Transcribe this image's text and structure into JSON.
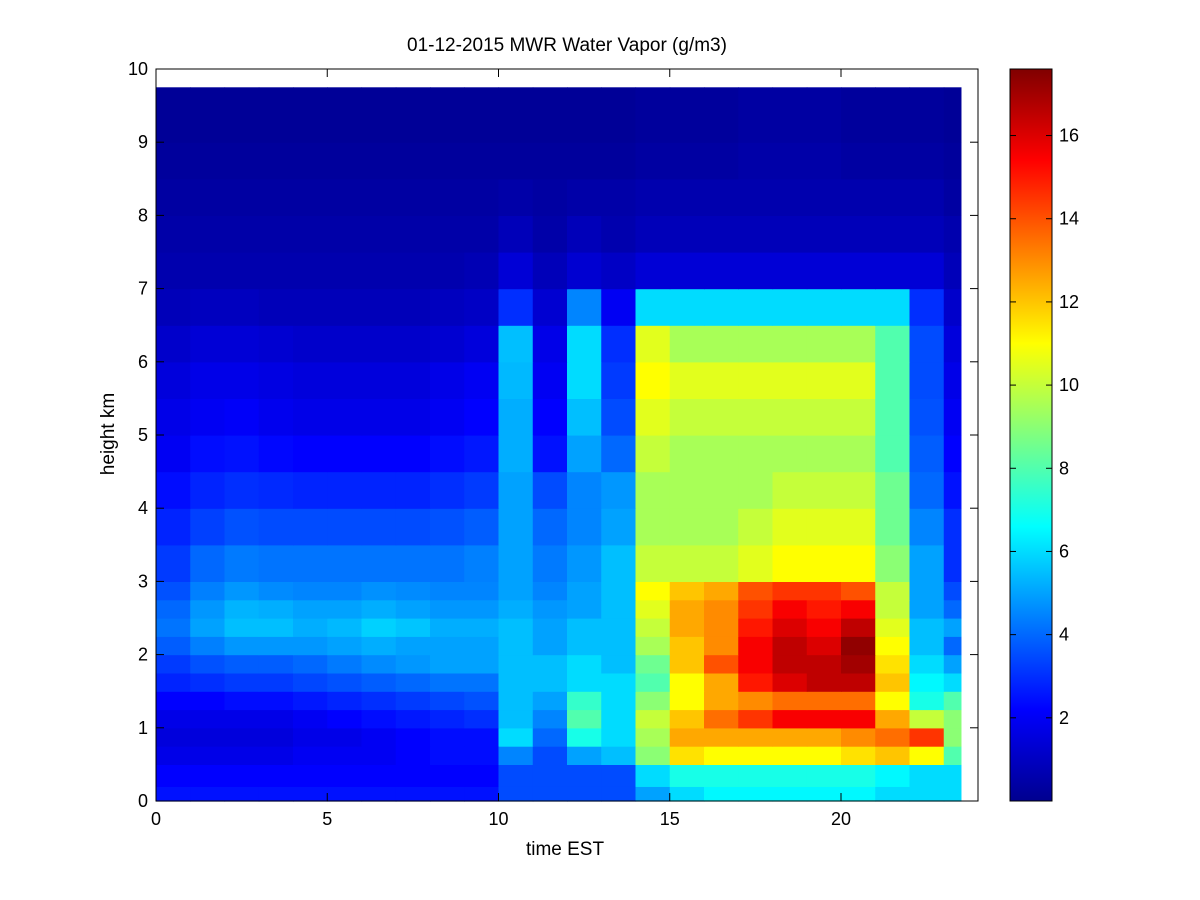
{
  "chart_data": {
    "type": "heatmap",
    "title": "01-12-2015 MWR Water Vapor (g/m3)",
    "xlabel": "time EST",
    "ylabel": "height km",
    "xlim": [
      0,
      24
    ],
    "ylim": [
      0,
      10
    ],
    "xticks": [
      0,
      5,
      10,
      15,
      20
    ],
    "yticks": [
      0,
      1,
      2,
      3,
      4,
      5,
      6,
      7,
      8,
      9,
      10
    ],
    "colorbar": {
      "colormap": "jet",
      "range": [
        0,
        17.6
      ],
      "ticks": [
        2,
        4,
        6,
        8,
        10,
        12,
        14,
        16
      ]
    },
    "x": [
      0,
      1,
      2,
      3,
      4,
      5,
      6,
      7,
      8,
      9,
      10,
      11,
      12,
      13,
      14,
      15,
      16,
      17,
      18,
      19,
      20,
      21,
      22,
      23
    ],
    "cell_width": 1,
    "max_height": 9.75,
    "heights": [
      0,
      0.2,
      0.5,
      0.75,
      1,
      1.25,
      1.5,
      1.75,
      2,
      2.25,
      2.5,
      2.75,
      3,
      3.5,
      4,
      4.5,
      5,
      5.5,
      6,
      6.5,
      7,
      7.5,
      8,
      8.5,
      9,
      9.75
    ],
    "values": [
      [
        2.5,
        2.5,
        2.5,
        2.5,
        2.5,
        2.5,
        2.5,
        2.5,
        2.5,
        2.5,
        3.5,
        3.5,
        3.5,
        3.5,
        5,
        6,
        6.5,
        6.5,
        6.5,
        6.5,
        6.5,
        6,
        6,
        6
      ],
      [
        2.2,
        2.2,
        2.2,
        2.2,
        2.2,
        2.2,
        2.2,
        2.2,
        2.2,
        2.2,
        3.5,
        3.5,
        3.5,
        3.5,
        6,
        7,
        7,
        7,
        7,
        7,
        7,
        6.5,
        6,
        6
      ],
      [
        1.8,
        1.8,
        1.8,
        1.8,
        2,
        2,
        2,
        2.2,
        2.4,
        2.4,
        4.5,
        3.5,
        5,
        5.5,
        9,
        11.5,
        11,
        11,
        11,
        11,
        11.5,
        12,
        11,
        8
      ],
      [
        1.6,
        1.6,
        1.6,
        1.6,
        1.8,
        1.8,
        2,
        2.2,
        2.4,
        2.4,
        6,
        4,
        7,
        6,
        9.5,
        12.5,
        12.5,
        12.5,
        12.5,
        12.5,
        13,
        13.5,
        14.5,
        9
      ],
      [
        1.8,
        1.8,
        1.8,
        1.8,
        2,
        2.2,
        2.4,
        2.6,
        2.8,
        3,
        5.5,
        4.5,
        8,
        6,
        10,
        12,
        13.5,
        14.5,
        15.5,
        15.5,
        15.5,
        12.5,
        10,
        9
      ],
      [
        2.2,
        2.2,
        2.4,
        2.4,
        2.6,
        2.8,
        3,
        3.2,
        3.4,
        3.6,
        5.5,
        5,
        7.5,
        6,
        9,
        11,
        12.5,
        13,
        13.5,
        13.5,
        13.5,
        11,
        7,
        8
      ],
      [
        2.8,
        3,
        3.2,
        3.2,
        3.4,
        3.6,
        3.8,
        4,
        4.2,
        4.2,
        5.5,
        5.5,
        6,
        6,
        8,
        11,
        12.5,
        15,
        16,
        16.5,
        16.5,
        12,
        6.5,
        6
      ],
      [
        3.2,
        3.6,
        3.8,
        3.8,
        4,
        4.3,
        4.6,
        4.8,
        5,
        5,
        5.5,
        5.5,
        6,
        5.5,
        8.5,
        12,
        14,
        15.5,
        16.5,
        16.5,
        17,
        11.5,
        6,
        5
      ],
      [
        3.8,
        4.4,
        4.8,
        4.8,
        4.8,
        5,
        5.2,
        5,
        5,
        5,
        5.5,
        5,
        5.5,
        5.5,
        9.5,
        12,
        13,
        15.5,
        16.5,
        16,
        17.3,
        11,
        5.5,
        4
      ],
      [
        4.2,
        5,
        5.5,
        5.5,
        5.2,
        5.4,
        5.8,
        5.6,
        5.2,
        5.2,
        5.5,
        5,
        5.5,
        5.5,
        10,
        12.5,
        13,
        15,
        16,
        15.5,
        16.5,
        10.5,
        5.5,
        5
      ],
      [
        4,
        4.8,
        5.3,
        5.2,
        5,
        5,
        5.2,
        5,
        4.8,
        4.8,
        5.2,
        4.8,
        5,
        5.5,
        10.5,
        12.5,
        13,
        14.5,
        15.5,
        15,
        15.5,
        10,
        5,
        4
      ],
      [
        3.6,
        4.4,
        4.8,
        4.6,
        4.5,
        4.5,
        4.7,
        4.6,
        4.5,
        4.5,
        5,
        4.5,
        5,
        5.5,
        11,
        12,
        12.5,
        14,
        14.5,
        14.5,
        14,
        10,
        5,
        3.5
      ],
      [
        3.2,
        4,
        4.3,
        4.2,
        4.2,
        4.2,
        4.2,
        4.2,
        4.2,
        4.4,
        5,
        4.3,
        4.8,
        5.5,
        10,
        10,
        10,
        10.5,
        11,
        11,
        11,
        9,
        5,
        3
      ],
      [
        2.8,
        3.3,
        3.6,
        3.5,
        3.5,
        3.5,
        3.5,
        3.5,
        3.6,
        3.8,
        5,
        4,
        4.5,
        5,
        9.5,
        9.5,
        9.5,
        10,
        10.5,
        10.5,
        10.5,
        8.5,
        4.5,
        3
      ],
      [
        2.4,
        2.8,
        3,
        2.9,
        2.8,
        2.8,
        2.8,
        2.8,
        3,
        3.2,
        5,
        3.5,
        4.5,
        4.8,
        9.5,
        9.5,
        9.5,
        9.5,
        10,
        10,
        10,
        8.5,
        4,
        2.5
      ],
      [
        2,
        2.4,
        2.5,
        2.3,
        2.2,
        2.2,
        2.2,
        2.2,
        2.4,
        2.6,
        5.2,
        2.5,
        5,
        4,
        10,
        9.5,
        9.5,
        9.5,
        9.5,
        9.5,
        9.5,
        8,
        3.8,
        2.2
      ],
      [
        1.8,
        2,
        2.1,
        1.9,
        1.8,
        1.8,
        1.8,
        1.8,
        2,
        2.2,
        5.2,
        2.2,
        5.5,
        3.5,
        10.5,
        10,
        10,
        10,
        10,
        10,
        10,
        8,
        3.6,
        2
      ],
      [
        1.6,
        1.8,
        1.8,
        1.7,
        1.6,
        1.6,
        1.6,
        1.6,
        1.8,
        2,
        5.4,
        2,
        6,
        3.2,
        11,
        10.5,
        10.5,
        10.5,
        10.5,
        10.5,
        10.5,
        8,
        3.5,
        1.8
      ],
      [
        1.3,
        1.5,
        1.5,
        1.4,
        1.3,
        1.3,
        1.3,
        1.3,
        1.4,
        1.6,
        5.5,
        1.8,
        6,
        3,
        10.5,
        9.5,
        9.5,
        9.5,
        9.5,
        9.5,
        9.5,
        8,
        3.5,
        1.6
      ],
      [
        1,
        1.1,
        1.1,
        1,
        1,
        1,
        1,
        1,
        1.1,
        1.2,
        3,
        1.4,
        4.5,
        2,
        6,
        6,
        6,
        6,
        6,
        6,
        6,
        6,
        3,
        1.3
      ],
      [
        0.8,
        0.8,
        0.8,
        0.8,
        0.8,
        0.8,
        0.8,
        0.8,
        0.8,
        0.9,
        1.5,
        1,
        1.4,
        1.2,
        1.5,
        1.5,
        1.5,
        1.5,
        1.5,
        1.5,
        1.5,
        1.5,
        1.5,
        1
      ],
      [
        0.7,
        0.7,
        0.7,
        0.7,
        0.7,
        0.7,
        0.7,
        0.7,
        0.7,
        0.7,
        1,
        0.7,
        1,
        0.8,
        1,
        1,
        1,
        1,
        1,
        1,
        1,
        1,
        1,
        0.8
      ],
      [
        0.6,
        0.6,
        0.6,
        0.6,
        0.6,
        0.6,
        0.6,
        0.6,
        0.6,
        0.6,
        0.7,
        0.6,
        0.7,
        0.7,
        0.8,
        0.8,
        0.8,
        0.8,
        0.8,
        0.8,
        0.8,
        0.8,
        0.8,
        0.6
      ],
      [
        0.5,
        0.5,
        0.5,
        0.5,
        0.5,
        0.5,
        0.5,
        0.5,
        0.5,
        0.5,
        0.5,
        0.5,
        0.5,
        0.5,
        0.6,
        0.6,
        0.6,
        0.7,
        0.7,
        0.7,
        0.6,
        0.6,
        0.6,
        0.5
      ],
      [
        0.4,
        0.4,
        0.4,
        0.4,
        0.4,
        0.4,
        0.4,
        0.4,
        0.4,
        0.4,
        0.4,
        0.4,
        0.4,
        0.4,
        0.5,
        0.5,
        0.5,
        0.6,
        0.6,
        0.6,
        0.5,
        0.5,
        0.5,
        0.4
      ]
    ]
  }
}
